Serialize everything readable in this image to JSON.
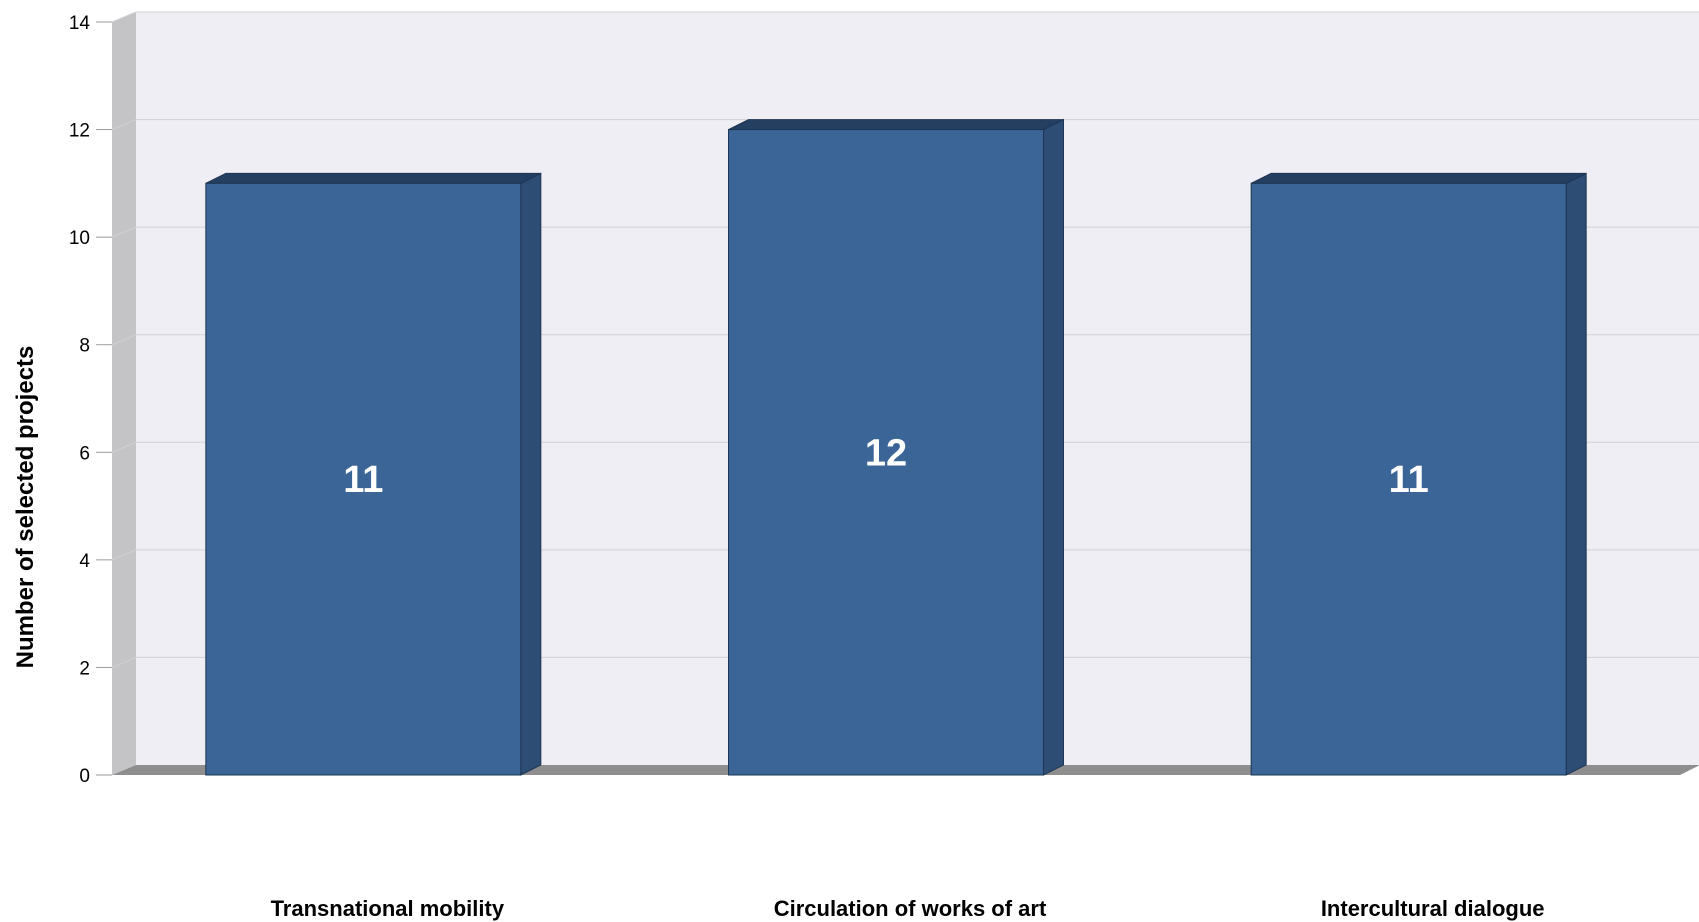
{
  "chart_data": {
    "type": "bar",
    "categories": [
      "Transnational mobility",
      "Circulation of works of art",
      "Intercultural dialogue"
    ],
    "values": [
      11,
      12,
      11
    ],
    "data_labels": [
      "11",
      "12",
      "11"
    ],
    "ylabel": "Number of selected projects",
    "xlabel": "",
    "ylim": [
      0,
      14
    ],
    "yticks": [
      0,
      2,
      4,
      6,
      8,
      10,
      12,
      14
    ],
    "ytick_labels": [
      "0",
      "2",
      "4",
      "6",
      "8",
      "10",
      "12",
      "14"
    ],
    "grid": true,
    "style": "3d",
    "colors": {
      "bar_front": "#3b6596",
      "bar_side": "#2d4d74",
      "bar_top": "#243f61",
      "plot_background": "#efeef4",
      "left_wall": "#c4c4c6",
      "floor": "#8e8e8e",
      "grid": "#d0d0d6"
    }
  }
}
